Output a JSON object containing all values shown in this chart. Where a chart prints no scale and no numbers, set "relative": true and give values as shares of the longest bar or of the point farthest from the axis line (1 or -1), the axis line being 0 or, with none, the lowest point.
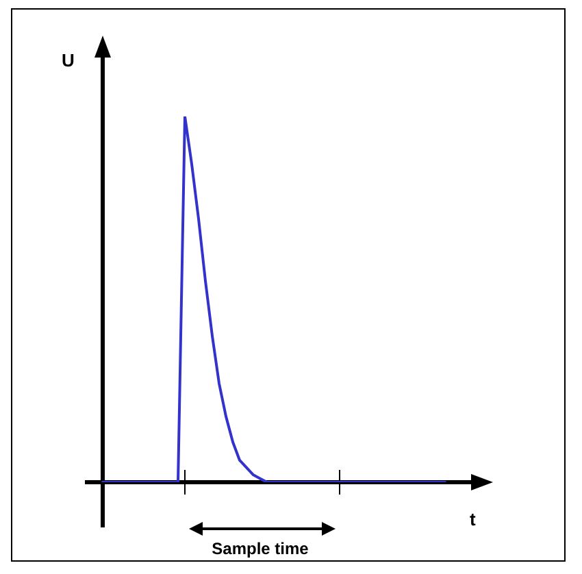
{
  "chart_data": {
    "type": "line",
    "relative": true,
    "xlabel": "t",
    "ylabel": "U",
    "annotations": [
      "Sample time"
    ],
    "categories": [
      null,
      null,
      null,
      null,
      null,
      null,
      null,
      null,
      null,
      null,
      null,
      null,
      null,
      null,
      null,
      null,
      null,
      null,
      null,
      null,
      null,
      null,
      null,
      null,
      null,
      null,
      null,
      null,
      null,
      null,
      null,
      null,
      null,
      null,
      null,
      null,
      null,
      null,
      null,
      null,
      null,
      null,
      null,
      null,
      null,
      null,
      null,
      null,
      null,
      null,
      null
    ],
    "series": [
      {
        "color": "#3333cc",
        "values": [
          0,
          0,
          0,
          0,
          0,
          0,
          0,
          0,
          0,
          0,
          0,
          0,
          1,
          0.87,
          0.72,
          0.55,
          0.4,
          0.27,
          0.18,
          0.11,
          0.06,
          0.04,
          0.02,
          0.01,
          0,
          0,
          0,
          0,
          0,
          0,
          0,
          0,
          0,
          0,
          0,
          0,
          0,
          0,
          0,
          0,
          0,
          0,
          0,
          0,
          0,
          0,
          0,
          0,
          0,
          0,
          0
        ]
      }
    ],
    "grid": false,
    "legend": false,
    "marker": "none"
  }
}
